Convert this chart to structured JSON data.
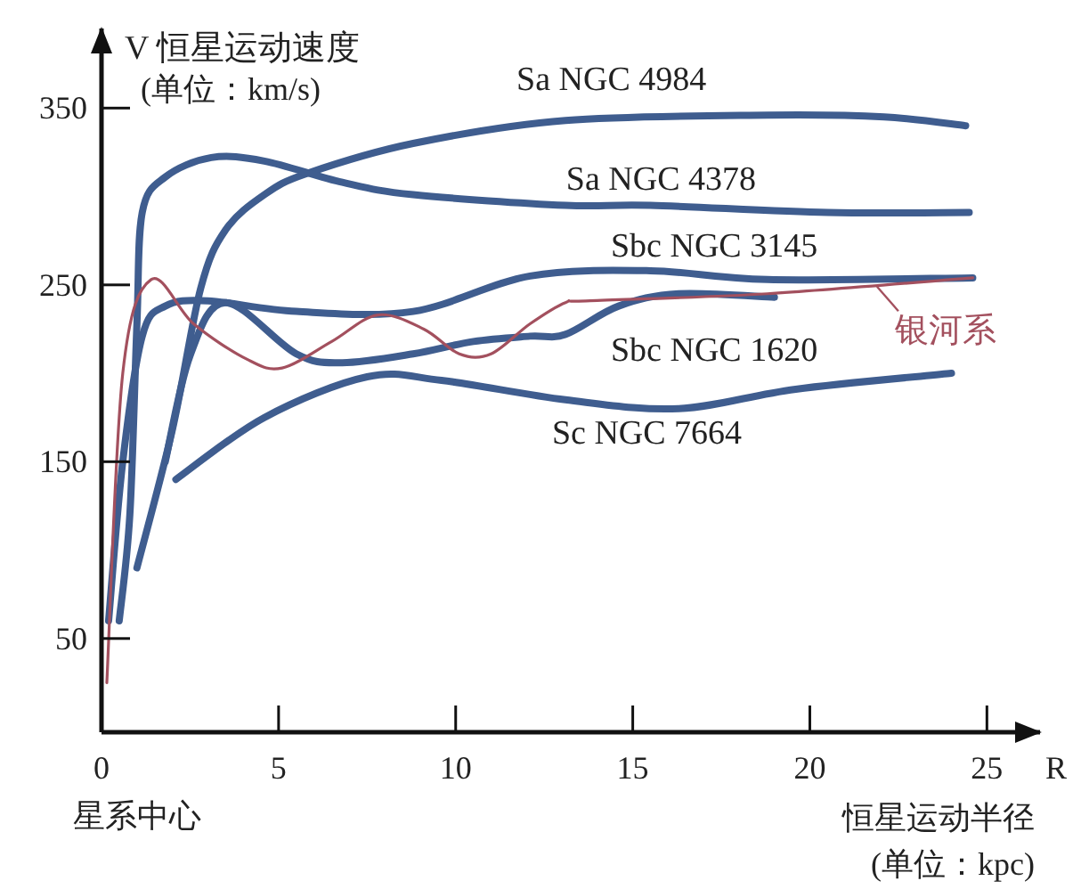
{
  "chart_data": {
    "type": "line",
    "ylabel": "V 恒星运动速度 (单位：km/s)",
    "xlabel": "R",
    "annotations": [
      "星系中心",
      "恒星运动半径 (单位：kpc)"
    ],
    "xlim": [
      0,
      26.5
    ],
    "ylim": [
      -3,
      395
    ],
    "xticks": [
      0,
      5,
      10,
      15,
      20,
      25
    ],
    "yticks": [
      50,
      150,
      250,
      350
    ],
    "grid": false,
    "series": [
      {
        "name": "Sa NGC 4984",
        "color": "#3f5d8f",
        "x": [
          1.0,
          2.0,
          2.8,
          3.5,
          4.6,
          5.8,
          8.8,
          13.1,
          18.8,
          22.1,
          24.4
        ],
        "values": [
          90,
          168,
          248,
          281,
          301,
          313,
          330,
          343,
          346,
          345,
          340
        ]
      },
      {
        "name": "Sa NGC 4378",
        "color": "#3f5d8f",
        "x": [
          0.5,
          0.8,
          1.0,
          1.15,
          1.8,
          3.1,
          4.6,
          6.8,
          8.8,
          13.1,
          15.5,
          20.5,
          24.5
        ],
        "values": [
          60,
          120,
          228,
          291,
          311,
          322,
          320,
          308,
          301,
          295,
          295,
          291,
          291
        ]
      },
      {
        "name": "Sbc NGC 3145",
        "color": "#3f5d8f",
        "x": [
          0.2,
          0.6,
          1.15,
          1.8,
          3.0,
          5.5,
          8.8,
          12.1,
          15.5,
          18.8,
          24.6
        ],
        "values": [
          60,
          150,
          221,
          238,
          241,
          235,
          235,
          255,
          258,
          253,
          254
        ]
      },
      {
        "name": "Sbc NGC 1620",
        "color": "#3f5d8f",
        "x": [
          1.8,
          2.5,
          3.5,
          5.5,
          6.8,
          8.8,
          10.5,
          12.1,
          13.1,
          14.6,
          16.3,
          19.0
        ],
        "values": [
          150,
          210,
          240,
          211,
          206,
          211,
          218,
          221,
          222,
          238,
          245,
          243
        ]
      },
      {
        "name": "Sc NGC 7664",
        "color": "#3f5d8f",
        "x": [
          2.1,
          4.6,
          7.5,
          9.6,
          13.1,
          16.3,
          19.6,
          24.0
        ],
        "values": [
          140,
          175,
          198,
          196,
          185,
          180,
          191,
          200
        ]
      },
      {
        "name": "银河系",
        "color": "#a3505e",
        "x": [
          0.15,
          0.6,
          1.4,
          2.6,
          4.1,
          5.1,
          6.5,
          7.8,
          9.1,
          10.1,
          11.0,
          12.1,
          13.1,
          13.8,
          18.8,
          24.6
        ],
        "values": [
          25,
          200,
          253,
          228,
          208,
          203,
          218,
          233,
          225,
          211,
          211,
          228,
          240,
          241,
          245,
          254
        ]
      }
    ]
  }
}
